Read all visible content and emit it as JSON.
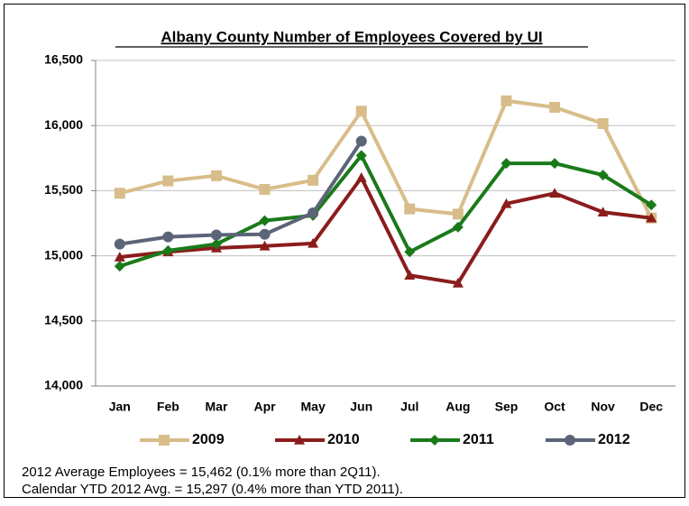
{
  "chart_data": {
    "type": "line",
    "title": "Albany County Number of Employees Covered by UI",
    "categories": [
      "Jan",
      "Feb",
      "Mar",
      "Apr",
      "May",
      "Jun",
      "Jul",
      "Aug",
      "Sep",
      "Oct",
      "Nov",
      "Dec"
    ],
    "series": [
      {
        "name": "2009",
        "color": "#d8bd8a",
        "marker": "square",
        "values": [
          15480,
          15575,
          15615,
          15510,
          15580,
          16110,
          15360,
          15320,
          16190,
          16140,
          16015,
          15290
        ]
      },
      {
        "name": "2010",
        "color": "#8b1c1c",
        "marker": "triangle",
        "values": [
          14990,
          15030,
          15060,
          15075,
          15095,
          15600,
          14850,
          14790,
          15400,
          15480,
          15335,
          15290
        ]
      },
      {
        "name": "2011",
        "color": "#1a7a1a",
        "marker": "diamond",
        "values": [
          14920,
          15040,
          15090,
          15270,
          15310,
          15770,
          15030,
          15220,
          15710,
          15710,
          15620,
          15390
        ]
      },
      {
        "name": "2012",
        "color": "#5c6478",
        "marker": "circle",
        "values": [
          15090,
          15145,
          15160,
          15165,
          15330,
          15880,
          null,
          null,
          null,
          null,
          null,
          null
        ]
      }
    ],
    "ylim": [
      14000,
      16500
    ],
    "yticks": [
      {
        "value": 14000,
        "label": "14,000"
      },
      {
        "value": 14500,
        "label": "14,500"
      },
      {
        "value": 15000,
        "label": "15,000"
      },
      {
        "value": 15500,
        "label": "15,500"
      },
      {
        "value": 16000,
        "label": "16,000"
      },
      {
        "value": 16500,
        "label": "16,500"
      }
    ],
    "grid": true,
    "legend": "bottom",
    "notes": [
      "2012 Average Employees = 15,462 (0.1% more than 2Q11).",
      "Calendar YTD 2012 Avg. = 15,297 (0.4% more than YTD 2011)."
    ]
  }
}
